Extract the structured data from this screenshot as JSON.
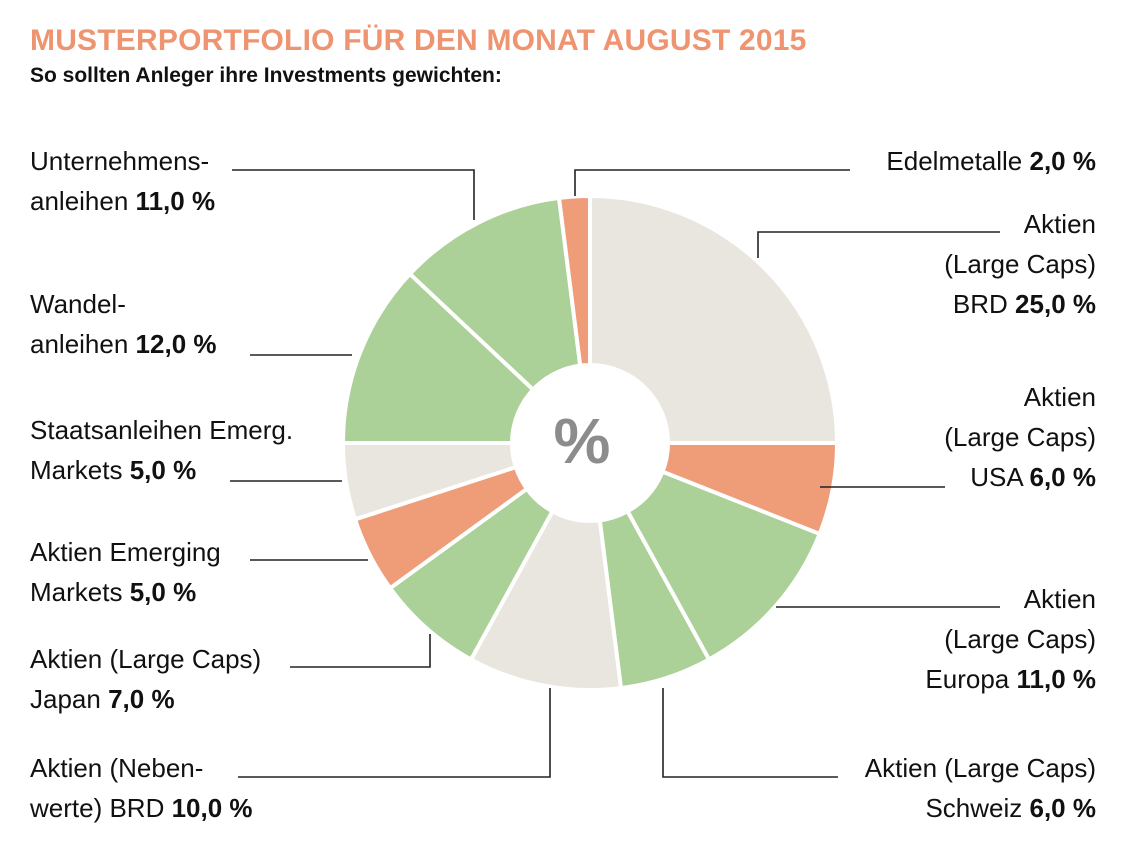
{
  "header": {
    "title": "MUSTERPORTFOLIO FÜR DEN MONAT AUGUST 2015",
    "subtitle": "So sollten Anleger ihre Investments gewichten:"
  },
  "center_label": "%",
  "colors": {
    "beige": "#e9e6df",
    "green": "#abd098",
    "orange": "#ef9c79",
    "title": "#ee9470"
  },
  "chart_data": {
    "type": "pie",
    "title": "MUSTERPORTFOLIO FÜR DEN MONAT AUGUST 2015",
    "subtitle": "So sollten Anleger ihre Investments gewichten:",
    "unit": "%",
    "slices": [
      {
        "lines": [
          "Aktien",
          "(Large Caps)",
          "BRD"
        ],
        "value": 25.0,
        "value_label": "25,0 %",
        "color": "beige"
      },
      {
        "lines": [
          "Aktien",
          "(Large Caps)",
          "USA"
        ],
        "value": 6.0,
        "value_label": "6,0 %",
        "color": "orange"
      },
      {
        "lines": [
          "Aktien",
          "(Large Caps)",
          "Europa"
        ],
        "value": 11.0,
        "value_label": "11,0 %",
        "color": "green"
      },
      {
        "lines": [
          "Aktien (Large Caps)",
          "Schweiz"
        ],
        "value": 6.0,
        "value_label": "6,0 %",
        "color": "green"
      },
      {
        "lines": [
          "Aktien (Neben-",
          "werte) BRD"
        ],
        "value": 10.0,
        "value_label": "10,0 %",
        "color": "beige"
      },
      {
        "lines": [
          "Aktien (Large Caps)",
          "Japan"
        ],
        "value": 7.0,
        "value_label": "7,0 %",
        "color": "green"
      },
      {
        "lines": [
          "Aktien Emerging",
          "Markets"
        ],
        "value": 5.0,
        "value_label": "5,0 %",
        "color": "orange"
      },
      {
        "lines": [
          "Staatsanleihen Emerg.",
          "Markets"
        ],
        "value": 5.0,
        "value_label": "5,0 %",
        "color": "beige"
      },
      {
        "lines": [
          "Wandel-",
          "anleihen"
        ],
        "value": 12.0,
        "value_label": "12,0 %",
        "color": "green"
      },
      {
        "lines": [
          "Unternehmens-",
          "anleihen"
        ],
        "value": 11.0,
        "value_label": "11,0 %",
        "color": "green"
      },
      {
        "lines": [
          "Edelmetalle"
        ],
        "value": 2.0,
        "value_label": "2,0 %",
        "color": "orange"
      }
    ]
  }
}
